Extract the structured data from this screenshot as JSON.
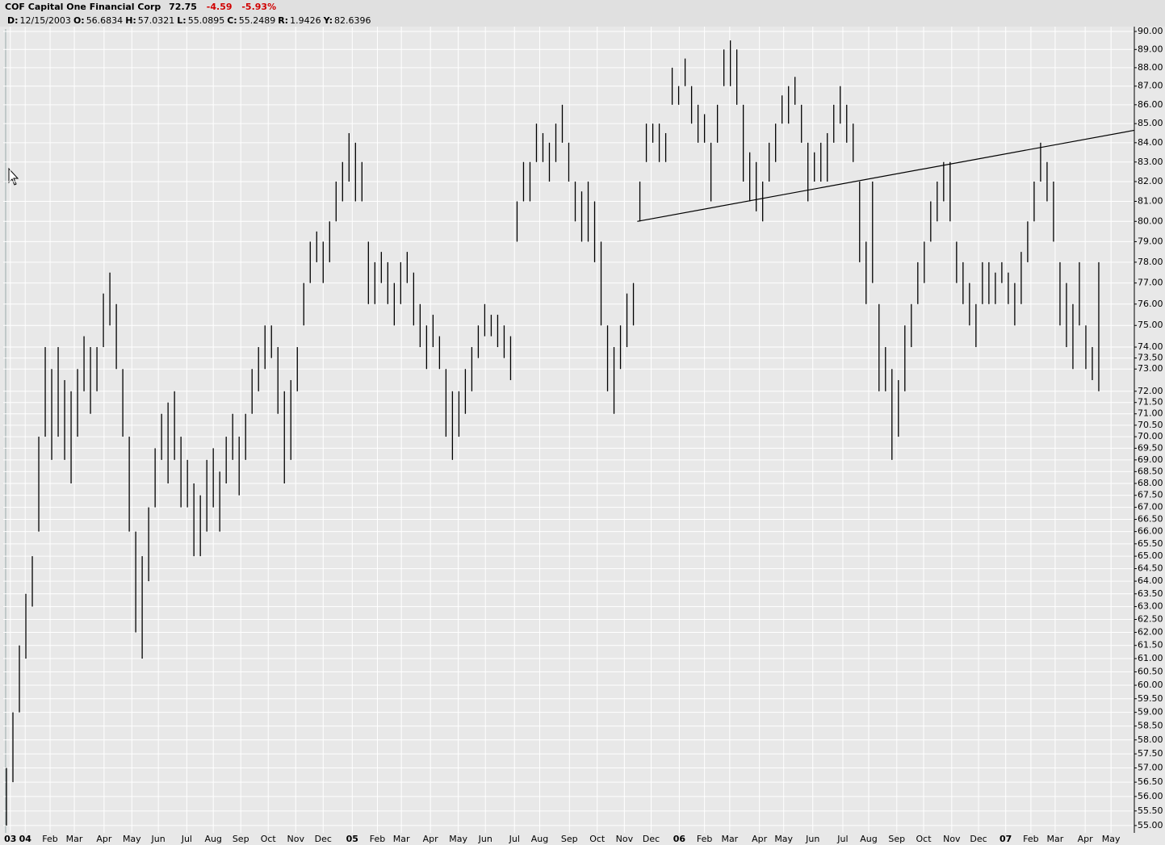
{
  "header": {
    "symbol": "COF",
    "name": "Capital One Financial Corp",
    "last": "72.75",
    "change": "-4.59",
    "change_pct": "-5.93%",
    "info": [
      {
        "key": "D:",
        "val": "12/15/2003"
      },
      {
        "key": "O:",
        "val": "56.6834"
      },
      {
        "key": "H:",
        "val": "57.0321"
      },
      {
        "key": "L:",
        "val": "55.0895"
      },
      {
        "key": "C:",
        "val": "55.2489"
      },
      {
        "key": "R:",
        "val": "1.9426"
      },
      {
        "key": "Y:",
        "val": "82.6396"
      }
    ]
  },
  "chart_data": {
    "type": "range-bar",
    "color": "#000000",
    "grid": true,
    "log_scale": true,
    "xlim": [
      -0.5,
      174.5
    ],
    "ylim": [
      54.75,
      90.27
    ],
    "highs": [
      57,
      59,
      61.5,
      63.5,
      65,
      70,
      74,
      73,
      74,
      72.5,
      72,
      73,
      74.5,
      74,
      74,
      76.5,
      77.5,
      76,
      73,
      70,
      66,
      65,
      67,
      69.5,
      71,
      71.5,
      72,
      70,
      69,
      68,
      67.5,
      69,
      69.5,
      68.5,
      70,
      71,
      70,
      71,
      73,
      74,
      75,
      75,
      74,
      72,
      72.5,
      74,
      77,
      79,
      79.5,
      79,
      80,
      82,
      83,
      84.5,
      84,
      83,
      79,
      78,
      78.5,
      78,
      77,
      78,
      78.5,
      77.5,
      76,
      75,
      75.5,
      74.5,
      73,
      72,
      72,
      73,
      74,
      75,
      76,
      75.5,
      75.5,
      75,
      74.5,
      81,
      83,
      83,
      85,
      84.5,
      84,
      85,
      86,
      84,
      82,
      81.5,
      82,
      81,
      79,
      75,
      74,
      75,
      76.5,
      77,
      82,
      85,
      85,
      85,
      84.5,
      88,
      87,
      88.5,
      87,
      86,
      85.5,
      84,
      86,
      89,
      89.5,
      89,
      86,
      83.5,
      83,
      82,
      84,
      85,
      86.5,
      87,
      87.5,
      86,
      84,
      83.5,
      84,
      84.5,
      86,
      87,
      86,
      85,
      82,
      79,
      82,
      76,
      74,
      73,
      72.5,
      75,
      76,
      78,
      79,
      81,
      82,
      83,
      83,
      79,
      78,
      77,
      76,
      78,
      78,
      77.5,
      78,
      77.5,
      77,
      78.5,
      80,
      82,
      84,
      83,
      82,
      78,
      77,
      76,
      78,
      75,
      74,
      78
    ],
    "lows": [
      55,
      56.5,
      59,
      61,
      63,
      66,
      70,
      69,
      70,
      69,
      68,
      70,
      72,
      71,
      72,
      74,
      75,
      73,
      70,
      66,
      62,
      61,
      64,
      67,
      69,
      68,
      69,
      67,
      67,
      65,
      65,
      66,
      67,
      66,
      68,
      69,
      67.5,
      69,
      71,
      72,
      73,
      73.5,
      71,
      68,
      69,
      72,
      75,
      77,
      78,
      77,
      78,
      80,
      81,
      82,
      81,
      81,
      76,
      76,
      77,
      76,
      75,
      76,
      77,
      75,
      74,
      73,
      74,
      73,
      70,
      69,
      70,
      71,
      72,
      73.5,
      74.5,
      74.5,
      74,
      73.5,
      72.5,
      79,
      81,
      81,
      83,
      83,
      82,
      83,
      84,
      82,
      80,
      79,
      79,
      78,
      75,
      72,
      71,
      73,
      74,
      75,
      80,
      83,
      84,
      83,
      83,
      86,
      86,
      87,
      85,
      84,
      84,
      81,
      84,
      87,
      87,
      86,
      82,
      81,
      80.5,
      80,
      82,
      83,
      85,
      85,
      86,
      84,
      81,
      82,
      82,
      82,
      84,
      85,
      84,
      83,
      78,
      76,
      77,
      72,
      72,
      69,
      70,
      72,
      74,
      76,
      77,
      79,
      80,
      81,
      80,
      77,
      76,
      75,
      74,
      76,
      76,
      76,
      77,
      76,
      75,
      76,
      78,
      80,
      82,
      81,
      79,
      75,
      74,
      73,
      75,
      73,
      72.5,
      72
    ],
    "xticks": [
      {
        "value": 0.6,
        "label": "03"
      },
      {
        "value": 2.9,
        "label": "04"
      },
      {
        "value": 6.75,
        "label": "Feb"
      },
      {
        "value": 10.5,
        "label": "Mar"
      },
      {
        "value": 15.1,
        "label": "Apr"
      },
      {
        "value": 19.4,
        "label": "May"
      },
      {
        "value": 23.5,
        "label": "Jun"
      },
      {
        "value": 27.9,
        "label": "Jul"
      },
      {
        "value": 32,
        "label": "Aug"
      },
      {
        "value": 36.25,
        "label": "Sep"
      },
      {
        "value": 40.5,
        "label": "Oct"
      },
      {
        "value": 44.75,
        "label": "Nov"
      },
      {
        "value": 49,
        "label": "Dec"
      },
      {
        "value": 53.5,
        "label": "05"
      },
      {
        "value": 57.4,
        "label": "Feb"
      },
      {
        "value": 61.1,
        "label": "Mar"
      },
      {
        "value": 65.6,
        "label": "Apr"
      },
      {
        "value": 69.9,
        "label": "May"
      },
      {
        "value": 74.1,
        "label": "Jun"
      },
      {
        "value": 78.6,
        "label": "Jul"
      },
      {
        "value": 82.5,
        "label": "Aug"
      },
      {
        "value": 87.1,
        "label": "Sep"
      },
      {
        "value": 91.4,
        "label": "Oct"
      },
      {
        "value": 95.6,
        "label": "Nov"
      },
      {
        "value": 99.75,
        "label": "Dec"
      },
      {
        "value": 104.1,
        "label": "06"
      },
      {
        "value": 108,
        "label": "Feb"
      },
      {
        "value": 111.9,
        "label": "Mar"
      },
      {
        "value": 116.5,
        "label": "Apr"
      },
      {
        "value": 120.25,
        "label": "May"
      },
      {
        "value": 124.75,
        "label": "Jun"
      },
      {
        "value": 129.4,
        "label": "Jul"
      },
      {
        "value": 133.4,
        "label": "Aug"
      },
      {
        "value": 137.75,
        "label": "Sep"
      },
      {
        "value": 141.9,
        "label": "Oct"
      },
      {
        "value": 146.25,
        "label": "Nov"
      },
      {
        "value": 150.4,
        "label": "Dec"
      },
      {
        "value": 154.6,
        "label": "07"
      },
      {
        "value": 158.5,
        "label": "Feb"
      },
      {
        "value": 162.25,
        "label": "Mar"
      },
      {
        "value": 166.9,
        "label": "Apr"
      },
      {
        "value": 170.9,
        "label": "May"
      }
    ],
    "yticks": [
      {
        "value": 90,
        "label": "90.00"
      },
      {
        "value": 89,
        "label": "89.00"
      },
      {
        "value": 88,
        "label": "88.00"
      },
      {
        "value": 87,
        "label": "87.00"
      },
      {
        "value": 86,
        "label": "86.00"
      },
      {
        "value": 85,
        "label": "85.00"
      },
      {
        "value": 84,
        "label": "84.00"
      },
      {
        "value": 83,
        "label": "83.00"
      },
      {
        "value": 82,
        "label": "82.00"
      },
      {
        "value": 81,
        "label": "81.00"
      },
      {
        "value": 80,
        "label": "80.00"
      },
      {
        "value": 79,
        "label": "79.00"
      },
      {
        "value": 78,
        "label": "78.00"
      },
      {
        "value": 77,
        "label": "77.00"
      },
      {
        "value": 76,
        "label": "76.00"
      },
      {
        "value": 75,
        "label": "75.00"
      },
      {
        "value": 74,
        "label": "74.00"
      },
      {
        "value": 73.5,
        "label": "73.50"
      },
      {
        "value": 73,
        "label": "73.00"
      },
      {
        "value": 72,
        "label": "72.00"
      },
      {
        "value": 71.5,
        "label": "71.50"
      },
      {
        "value": 71,
        "label": "71.00"
      },
      {
        "value": 70.5,
        "label": "70.50"
      },
      {
        "value": 70,
        "label": "70.00"
      },
      {
        "value": 69.5,
        "label": "69.50"
      },
      {
        "value": 69,
        "label": "69.00"
      },
      {
        "value": 68.5,
        "label": "68.50"
      },
      {
        "value": 68,
        "label": "68.00"
      },
      {
        "value": 67.5,
        "label": "67.50"
      },
      {
        "value": 67,
        "label": "67.00"
      },
      {
        "value": 66.5,
        "label": "66.50"
      },
      {
        "value": 66,
        "label": "66.00"
      },
      {
        "value": 65.5,
        "label": "65.50"
      },
      {
        "value": 65,
        "label": "65.00"
      },
      {
        "value": 64.5,
        "label": "64.50"
      },
      {
        "value": 64,
        "label": "64.00"
      },
      {
        "value": 63.5,
        "label": "63.50"
      },
      {
        "value": 63,
        "label": "63.00"
      },
      {
        "value": 62.5,
        "label": "62.50"
      },
      {
        "value": 62,
        "label": "62.00"
      },
      {
        "value": 61.5,
        "label": "61.50"
      },
      {
        "value": 61,
        "label": "61.00"
      },
      {
        "value": 60.5,
        "label": "60.50"
      },
      {
        "value": 60,
        "label": "60.00"
      },
      {
        "value": 59.5,
        "label": "59.50"
      },
      {
        "value": 59,
        "label": "59.00"
      },
      {
        "value": 58.5,
        "label": "58.50"
      },
      {
        "value": 58,
        "label": "58.00"
      },
      {
        "value": 57.5,
        "label": "57.50"
      },
      {
        "value": 57,
        "label": "57.00"
      },
      {
        "value": 56.5,
        "label": "56.50"
      },
      {
        "value": 56,
        "label": "56.00"
      },
      {
        "value": 55.5,
        "label": "55.50"
      },
      {
        "value": 55,
        "label": "55.00"
      }
    ],
    "trendline": {
      "x": [
        97.6,
        174.5
      ],
      "values": [
        80,
        84.65
      ]
    }
  }
}
